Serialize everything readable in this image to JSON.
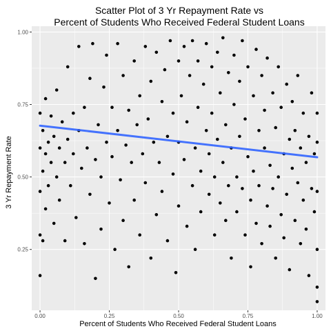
{
  "chart_data": {
    "type": "scatter",
    "title_line1": "Scatter Plot of 3 Yr Repayment Rate vs",
    "title_line2": "Percent of Students Who Received Federal Student Loans",
    "xlabel": "Percent of Students Who Received Federal Student Loans",
    "ylabel": "3 Yr Repayment Rate",
    "xlim": [
      -0.03,
      1.03
    ],
    "ylim": [
      0.04,
      1.02
    ],
    "x_ticks": [
      {
        "value": 0.0,
        "label": "0.00"
      },
      {
        "value": 0.25,
        "label": "0.25"
      },
      {
        "value": 0.5,
        "label": "0.50"
      },
      {
        "value": 0.75,
        "label": "0.75"
      },
      {
        "value": 1.0,
        "label": "1.00"
      }
    ],
    "y_ticks": [
      {
        "value": 0.25,
        "label": "0.25"
      },
      {
        "value": 0.5,
        "label": "0.50"
      },
      {
        "value": 0.75,
        "label": "0.75"
      },
      {
        "value": 1.0,
        "label": "1.00"
      }
    ],
    "grid": true,
    "panel_color": "#ebebeb",
    "grid_color": "#ffffff",
    "point_color": "#000000",
    "trend_color": "#3366ff",
    "trend_line": {
      "x": [
        0.0,
        1.0
      ],
      "y": [
        0.677,
        0.568
      ]
    },
    "points": [
      [
        0.0,
        0.16
      ],
      [
        0.0,
        0.3
      ],
      [
        0.0,
        0.45
      ],
      [
        0.0,
        0.6
      ],
      [
        0.0,
        0.72
      ],
      [
        0.01,
        0.28
      ],
      [
        0.01,
        0.52
      ],
      [
        0.01,
        0.66
      ],
      [
        0.02,
        0.39
      ],
      [
        0.02,
        0.58
      ],
      [
        0.02,
        0.77
      ],
      [
        0.03,
        0.47
      ],
      [
        0.03,
        0.62
      ],
      [
        0.04,
        0.55
      ],
      [
        0.04,
        0.71
      ],
      [
        0.05,
        0.34
      ],
      [
        0.05,
        0.64
      ],
      [
        0.06,
        0.5
      ],
      [
        0.06,
        0.8
      ],
      [
        0.07,
        0.6
      ],
      [
        0.07,
        0.42
      ],
      [
        0.08,
        0.69
      ],
      [
        0.09,
        0.28
      ],
      [
        0.09,
        0.55
      ],
      [
        0.1,
        0.63
      ],
      [
        0.1,
        0.88
      ],
      [
        0.11,
        0.47
      ],
      [
        0.12,
        0.58
      ],
      [
        0.12,
        0.72
      ],
      [
        0.13,
        0.36
      ],
      [
        0.14,
        0.66
      ],
      [
        0.14,
        0.95
      ],
      [
        0.15,
        0.53
      ],
      [
        0.16,
        0.27
      ],
      [
        0.16,
        0.74
      ],
      [
        0.17,
        0.6
      ],
      [
        0.18,
        0.44
      ],
      [
        0.18,
        0.84
      ],
      [
        0.19,
        0.96
      ],
      [
        0.2,
        0.56
      ],
      [
        0.2,
        0.15
      ],
      [
        0.21,
        0.68
      ],
      [
        0.22,
        0.32
      ],
      [
        0.22,
        0.5
      ],
      [
        0.23,
        0.81
      ],
      [
        0.24,
        0.62
      ],
      [
        0.24,
        0.92
      ],
      [
        0.25,
        0.41
      ],
      [
        0.26,
        0.57
      ],
      [
        0.26,
        0.74
      ],
      [
        0.27,
        0.25
      ],
      [
        0.28,
        0.66
      ],
      [
        0.28,
        0.96
      ],
      [
        0.29,
        0.49
      ],
      [
        0.3,
        0.85
      ],
      [
        0.3,
        0.35
      ],
      [
        0.31,
        0.61
      ],
      [
        0.32,
        0.73
      ],
      [
        0.32,
        0.19
      ],
      [
        0.33,
        0.55
      ],
      [
        0.34,
        0.9
      ],
      [
        0.34,
        0.42
      ],
      [
        0.35,
        0.68
      ],
      [
        0.36,
        0.78
      ],
      [
        0.36,
        0.3
      ],
      [
        0.37,
        0.58
      ],
      [
        0.38,
        0.95
      ],
      [
        0.38,
        0.48
      ],
      [
        0.39,
        0.7
      ],
      [
        0.4,
        0.83
      ],
      [
        0.4,
        0.22
      ],
      [
        0.41,
        0.62
      ],
      [
        0.42,
        0.37
      ],
      [
        0.42,
        0.93
      ],
      [
        0.43,
        0.55
      ],
      [
        0.44,
        0.76
      ],
      [
        0.44,
        0.45
      ],
      [
        0.45,
        0.87
      ],
      [
        0.46,
        0.64
      ],
      [
        0.46,
        0.28
      ],
      [
        0.47,
        0.97
      ],
      [
        0.48,
        0.51
      ],
      [
        0.48,
        0.72
      ],
      [
        0.49,
        0.17
      ],
      [
        0.5,
        0.62
      ],
      [
        0.5,
        0.9
      ],
      [
        0.5,
        0.4
      ],
      [
        0.51,
        0.78
      ],
      [
        0.52,
        0.56
      ],
      [
        0.52,
        0.95
      ],
      [
        0.53,
        0.33
      ],
      [
        0.53,
        0.69
      ],
      [
        0.54,
        0.85
      ],
      [
        0.55,
        0.47
      ],
      [
        0.55,
        0.97
      ],
      [
        0.56,
        0.6
      ],
      [
        0.56,
        0.25
      ],
      [
        0.57,
        0.74
      ],
      [
        0.57,
        0.9
      ],
      [
        0.58,
        0.52
      ],
      [
        0.58,
        0.38
      ],
      [
        0.59,
        0.82
      ],
      [
        0.6,
        0.66
      ],
      [
        0.6,
        0.96
      ],
      [
        0.61,
        0.44
      ],
      [
        0.61,
        0.58
      ],
      [
        0.62,
        0.88
      ],
      [
        0.62,
        0.72
      ],
      [
        0.63,
        0.3
      ],
      [
        0.63,
        0.5
      ],
      [
        0.64,
        0.93
      ],
      [
        0.64,
        0.63
      ],
      [
        0.65,
        0.41
      ],
      [
        0.65,
        0.79
      ],
      [
        0.66,
        0.55
      ],
      [
        0.66,
        0.98
      ],
      [
        0.67,
        0.35
      ],
      [
        0.67,
        0.68
      ],
      [
        0.68,
        0.86
      ],
      [
        0.68,
        0.47
      ],
      [
        0.69,
        0.6
      ],
      [
        0.69,
        0.22
      ],
      [
        0.7,
        0.75
      ],
      [
        0.7,
        0.92
      ],
      [
        0.71,
        0.5
      ],
      [
        0.71,
        0.38
      ],
      [
        0.72,
        0.83
      ],
      [
        0.72,
        0.64
      ],
      [
        0.73,
        0.46
      ],
      [
        0.73,
        0.97
      ],
      [
        0.74,
        0.3
      ],
      [
        0.74,
        0.7
      ],
      [
        0.75,
        0.57
      ],
      [
        0.75,
        0.88
      ],
      [
        0.76,
        0.42
      ],
      [
        0.76,
        0.19
      ],
      [
        0.77,
        0.78
      ],
      [
        0.77,
        0.52
      ],
      [
        0.78,
        0.94
      ],
      [
        0.78,
        0.34
      ],
      [
        0.79,
        0.66
      ],
      [
        0.79,
        0.47
      ],
      [
        0.8,
        0.85
      ],
      [
        0.8,
        0.27
      ],
      [
        0.81,
        0.6
      ],
      [
        0.81,
        0.73
      ],
      [
        0.82,
        0.4
      ],
      [
        0.82,
        0.91
      ],
      [
        0.83,
        0.54
      ],
      [
        0.83,
        0.33
      ],
      [
        0.84,
        0.79
      ],
      [
        0.84,
        0.46
      ],
      [
        0.85,
        0.67
      ],
      [
        0.85,
        0.22
      ],
      [
        0.86,
        0.88
      ],
      [
        0.86,
        0.5
      ],
      [
        0.87,
        0.37
      ],
      [
        0.87,
        0.74
      ],
      [
        0.88,
        0.58
      ],
      [
        0.88,
        0.29
      ],
      [
        0.89,
        0.82
      ],
      [
        0.89,
        0.44
      ],
      [
        0.9,
        0.63
      ],
      [
        0.9,
        0.18
      ],
      [
        0.91,
        0.53
      ],
      [
        0.91,
        0.76
      ],
      [
        0.92,
        0.35
      ],
      [
        0.92,
        0.66
      ],
      [
        0.93,
        0.48
      ],
      [
        0.93,
        0.85
      ],
      [
        0.94,
        0.27
      ],
      [
        0.94,
        0.6
      ],
      [
        0.95,
        0.42
      ],
      [
        0.95,
        0.72
      ],
      [
        0.96,
        0.55
      ],
      [
        0.96,
        0.32
      ],
      [
        0.97,
        0.16
      ],
      [
        0.97,
        0.64
      ],
      [
        0.98,
        0.46
      ],
      [
        0.98,
        0.79
      ],
      [
        0.99,
        0.38
      ],
      [
        0.99,
        0.58
      ],
      [
        1.0,
        0.07
      ],
      [
        1.0,
        0.12
      ],
      [
        1.0,
        0.25
      ],
      [
        1.0,
        0.45
      ],
      [
        1.0,
        0.62
      ],
      [
        1.0,
        0.72
      ]
    ]
  }
}
